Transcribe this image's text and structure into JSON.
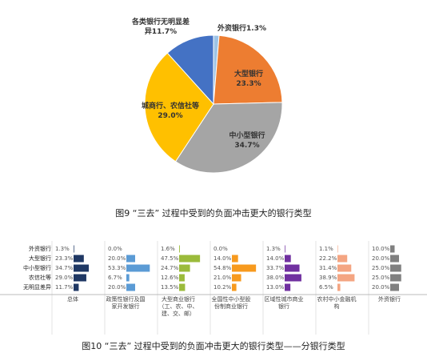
{
  "chart_data": [
    {
      "type": "pie",
      "title": "图9 “三去” 过程中受到的负面冲击更大的银行类型",
      "categories": [
        "外资银行",
        "大型银行",
        "中小型银行",
        "城商行、农信社等",
        "各类银行无明显差异"
      ],
      "values": [
        1.3,
        23.3,
        34.7,
        29.0,
        11.7
      ],
      "value_labels": [
        "1.3%",
        "23.3%",
        "34.7%",
        "29.0%",
        "11.7%"
      ],
      "colors": [
        "#9DC3E6",
        "#ED7D31",
        "#A5A5A5",
        "#FFC000",
        "#4472C4"
      ]
    },
    {
      "type": "bar",
      "title": "图10 “三去” 过程中受到的负面冲击更大的银行类型——分银行类型",
      "categories": [
        "外资银行",
        "大型银行",
        "中小型银行",
        "农信社等",
        "无明显差异"
      ],
      "series": [
        {
          "name": "总体",
          "color": "#1F3864",
          "values": [
            1.3,
            23.3,
            34.7,
            29.0,
            11.7
          ],
          "value_labels": [
            "1.3%",
            "23.3%",
            "34.7%",
            "29.0%",
            "11.7%"
          ]
        },
        {
          "name": "政策性银行及国家开发银行",
          "color": "#5B9BD5",
          "values": [
            0.0,
            20.0,
            53.3,
            6.7,
            20.0
          ],
          "value_labels": [
            "0.0%",
            "20.0%",
            "53.3%",
            "6.7%",
            "20.0%"
          ]
        },
        {
          "name": "大型商业银行（工、农、中、建、交、邮）",
          "color": "#9BBB3B",
          "values": [
            1.6,
            47.5,
            24.7,
            12.6,
            13.5
          ],
          "value_labels": [
            "1.6%",
            "47.5%",
            "24.7%",
            "12.6%",
            "13.5%"
          ]
        },
        {
          "name": "全国性中小型股份制商业银行",
          "color": "#F79A1E",
          "values": [
            0.0,
            14.0,
            54.8,
            21.0,
            10.2
          ],
          "value_labels": [
            "0.0%",
            "14.0%",
            "54.8%",
            "21.0%",
            "10.2%"
          ]
        },
        {
          "name": "区域性城市商业银行",
          "color": "#7030A0",
          "values": [
            1.3,
            14.0,
            33.7,
            38.0,
            13.0
          ],
          "value_labels": [
            "1.3%",
            "14.0%",
            "33.7%",
            "38.0%",
            "13.0%"
          ]
        },
        {
          "name": "农村中小金融机构",
          "color": "#F4A582",
          "values": [
            1.1,
            22.2,
            31.4,
            38.9,
            6.5
          ],
          "value_labels": [
            "1.1%",
            "22.2%",
            "31.4%",
            "38.9%",
            "6.5%"
          ]
        },
        {
          "name": "外资银行",
          "color": "#808080",
          "values": [
            10.0,
            20.0,
            25.0,
            25.0,
            20.0
          ],
          "value_labels": [
            "10.0%",
            "20.0%",
            "25.0%",
            "25.0%",
            "20.0%"
          ]
        }
      ]
    }
  ]
}
